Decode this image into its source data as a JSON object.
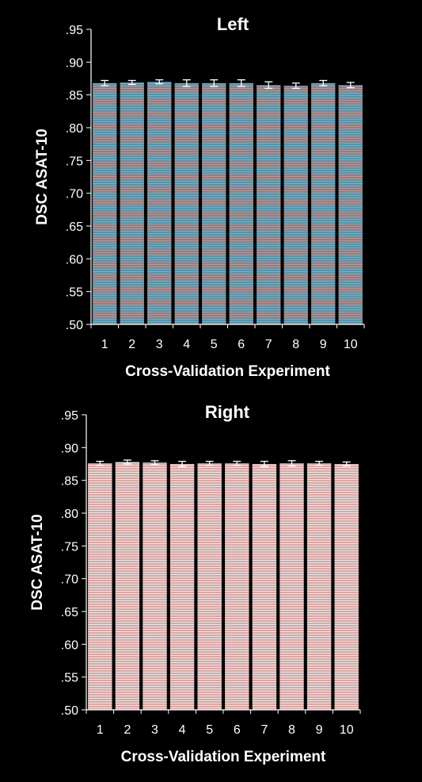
{
  "colors": {
    "background": "#000000",
    "axis": "#ffffff",
    "left_bar_fill": "#5b93a8",
    "left_bar_stripe": "#c98f8a",
    "right_bar_fill": "#d7a8a6",
    "right_bar_stripe": "#ebe3e3",
    "error_bar": "#ffffff"
  },
  "chart_data": [
    {
      "type": "bar",
      "title": "Left",
      "xlabel": "Cross-Validation  Experiment",
      "ylabel": "DSC  ASAT-10",
      "categories": [
        "1",
        "2",
        "3",
        "4",
        "5",
        "6",
        "7",
        "8",
        "9",
        "10"
      ],
      "values": [
        0.868,
        0.869,
        0.87,
        0.868,
        0.868,
        0.868,
        0.865,
        0.864,
        0.868,
        0.865
      ],
      "error": [
        0.004,
        0.003,
        0.003,
        0.005,
        0.005,
        0.005,
        0.005,
        0.004,
        0.004,
        0.004
      ],
      "ylim": [
        0.5,
        0.95
      ],
      "yticks": [
        ".50",
        ".55",
        ".60",
        ".65",
        ".70",
        ".75",
        ".80",
        ".85",
        ".90",
        ".95"
      ],
      "grid": false,
      "legend": "none"
    },
    {
      "type": "bar",
      "title": "Right",
      "xlabel": "Cross-Validation  Experiment",
      "ylabel": "DSC  ASAT-10",
      "categories": [
        "1",
        "2",
        "3",
        "4",
        "5",
        "6",
        "7",
        "8",
        "9",
        "10"
      ],
      "values": [
        0.876,
        0.878,
        0.877,
        0.875,
        0.876,
        0.876,
        0.875,
        0.876,
        0.876,
        0.875
      ],
      "error": [
        0.003,
        0.003,
        0.003,
        0.004,
        0.003,
        0.003,
        0.004,
        0.004,
        0.003,
        0.003
      ],
      "ylim": [
        0.5,
        0.95
      ],
      "yticks": [
        ".50",
        ".55",
        ".60",
        ".65",
        ".70",
        ".75",
        ".80",
        ".85",
        ".90",
        ".95"
      ],
      "grid": false,
      "legend": "none"
    }
  ]
}
